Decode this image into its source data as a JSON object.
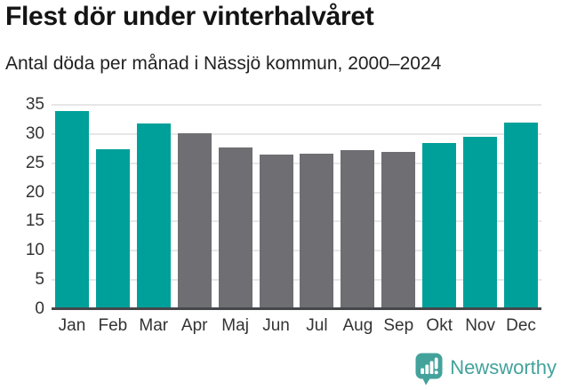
{
  "header": {
    "title": "Flest dör under vinterhalvåret",
    "subtitle": "Antal döda per månad i Nässjö kommun, 2000–2024"
  },
  "chart_data": {
    "type": "bar",
    "title": "Flest dör under vinterhalvåret",
    "subtitle": "Antal döda per månad i Nässjö kommun, 2000–2024",
    "categories": [
      "Jan",
      "Feb",
      "Mar",
      "Apr",
      "Maj",
      "Jun",
      "Jul",
      "Aug",
      "Sep",
      "Okt",
      "Nov",
      "Dec"
    ],
    "values": [
      33.9,
      27.4,
      31.8,
      30.2,
      27.7,
      26.5,
      26.6,
      27.2,
      27.0,
      28.5,
      29.6,
      32.0
    ],
    "bar_colors": [
      "teal",
      "teal",
      "teal",
      "gray",
      "gray",
      "gray",
      "gray",
      "gray",
      "gray",
      "teal",
      "teal",
      "teal"
    ],
    "xlabel": "",
    "ylabel": "",
    "ylim": [
      0,
      35
    ],
    "yticks": [
      0,
      5,
      10,
      15,
      20,
      25,
      30,
      35
    ],
    "grid": true,
    "legend": false,
    "colors": {
      "highlight_teal": "#00a09a",
      "neutral_gray": "#6e6e73",
      "gridline": "#e7e7e7",
      "axis_line": "#45474a",
      "tick_label": "#333333"
    }
  },
  "footer": {
    "brand": "Newsworthy",
    "brand_color": "#43a29b",
    "logo_icon": "bar-chart-speech-bubble"
  }
}
